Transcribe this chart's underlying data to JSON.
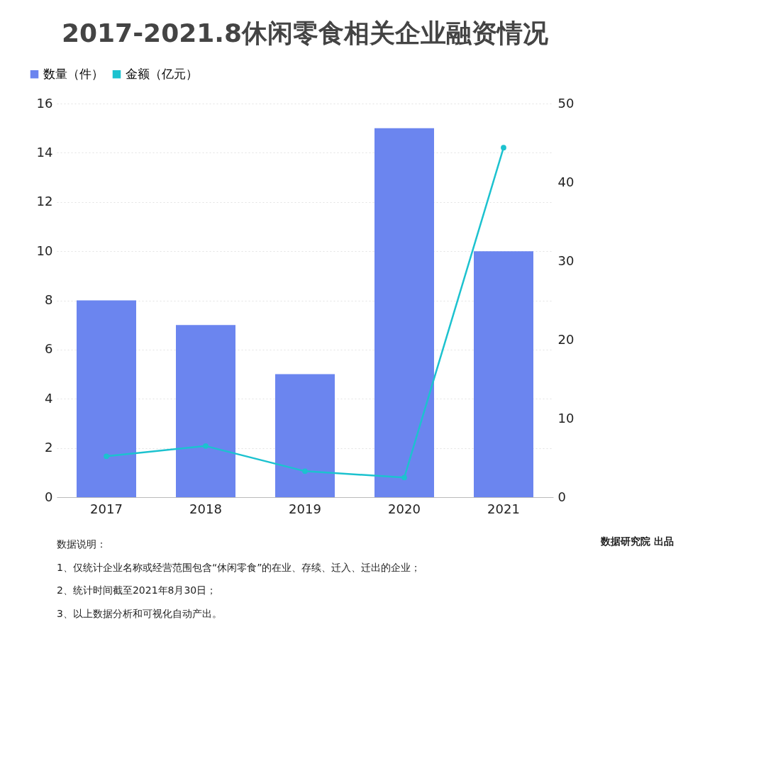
{
  "chart_data": {
    "type": "bar",
    "title": "2017-2021.8休闲零食相关企业融资情况",
    "categories": [
      "2017",
      "2018",
      "2019",
      "2020",
      "2021"
    ],
    "series": [
      {
        "name": "数量（件）",
        "color": "#6b85ef",
        "values": [
          8,
          7,
          5,
          15,
          10
        ]
      },
      {
        "name": "金额（亿元）",
        "color": "#1cc2cf",
        "type": "line",
        "axis": "y2",
        "values": [
          5.2,
          6.5,
          3.3,
          2.5,
          44.4
        ]
      }
    ],
    "ylim": [
      0,
      16
    ],
    "yticks": [
      0,
      2,
      4,
      6,
      8,
      10,
      12,
      14,
      16
    ],
    "y2lim": [
      0,
      50
    ],
    "y2ticks": [
      0,
      10,
      20,
      30,
      40,
      50
    ],
    "grid": "y",
    "legend": "top left",
    "marker": "circle",
    "annotations": [
      "数据说明：",
      "1、仅统计企业名称或经营范围包含“休闲零食”的在业、存续、迁入、迁出的企业；",
      "2、统计时间截至2021年8月30日；",
      "3、以上数据分析和可视化自动产出。",
      "数据研究院 出品"
    ]
  }
}
